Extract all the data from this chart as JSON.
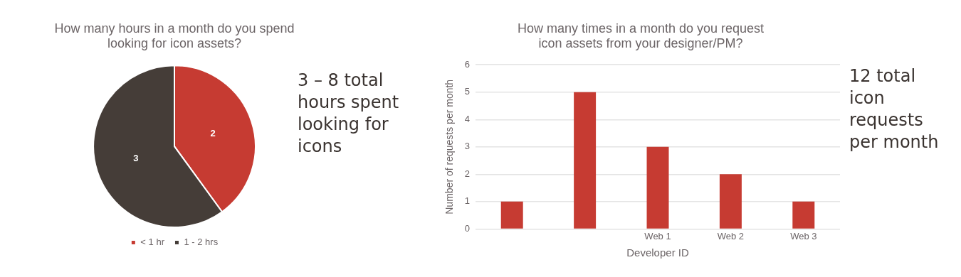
{
  "chart_data": [
    {
      "type": "pie",
      "title": "How many hours in a month do you spend looking for icon assets?",
      "categories": [
        "< 1 hr",
        "1 - 2 hrs"
      ],
      "values": [
        2,
        3
      ],
      "colors": [
        "#c63b32",
        "#453d38"
      ],
      "data_labels": true,
      "legend": "bottom",
      "annotations": [
        "3 – 8 total hours spent looking for icons"
      ]
    },
    {
      "type": "bar",
      "title": "How many times in a month do you request icon assets from your designer/PM?",
      "xlabel": "Developer ID",
      "ylabel": "Number of requests per month",
      "categories": [
        null,
        null,
        "Web 1",
        "Web 2",
        "Web 3"
      ],
      "values": [
        1,
        5,
        3,
        2,
        1
      ],
      "color": "#c63b32",
      "ylim": [
        0,
        6
      ],
      "yticks": [
        0,
        1,
        2,
        3,
        4,
        5,
        6
      ],
      "grid": "y",
      "legend": false,
      "annotations": [
        "12 total icon requests per month"
      ]
    }
  ]
}
